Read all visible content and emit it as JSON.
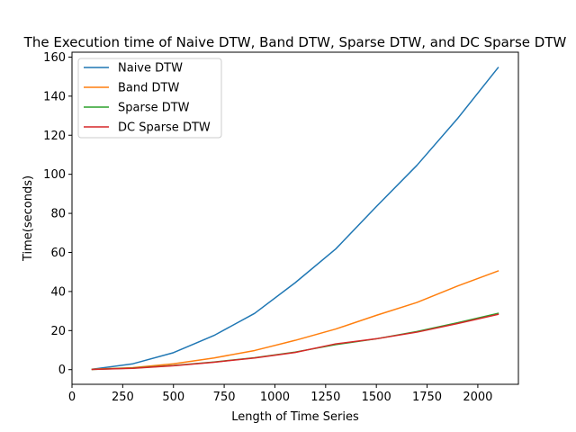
{
  "chart_data": {
    "type": "line",
    "title": "The Execution time of Naive DTW, Band DTW, Sparse DTW, and DC Sparse DTW",
    "xlabel": "Length of Time Series",
    "ylabel": "Time(seconds)",
    "xlim": [
      0,
      2200
    ],
    "ylim": [
      -7.5,
      162.5
    ],
    "xticks": [
      0,
      250,
      500,
      750,
      1000,
      1250,
      1500,
      1750,
      2000
    ],
    "yticks": [
      0,
      20,
      40,
      60,
      80,
      100,
      120,
      140,
      160
    ],
    "legend_position": "top-left",
    "grid": false,
    "x": [
      100,
      300,
      500,
      700,
      900,
      1100,
      1300,
      1500,
      1700,
      1900,
      2100
    ],
    "series": [
      {
        "name": "Naive DTW",
        "color": "#1f77b4",
        "values": [
          0.2,
          3.0,
          8.7,
          17.5,
          28.8,
          44.5,
          61.8,
          83.5,
          104.6,
          128.5,
          154.6
        ]
      },
      {
        "name": "Band DTW",
        "color": "#ff7f0e",
        "values": [
          0.2,
          1.0,
          3.0,
          6.0,
          9.8,
          15.0,
          20.8,
          27.8,
          34.4,
          42.8,
          50.5
        ]
      },
      {
        "name": "Sparse DTW",
        "color": "#2ca02c",
        "values": [
          0.1,
          0.8,
          2.1,
          3.9,
          6.1,
          9.0,
          12.8,
          15.8,
          19.5,
          24.0,
          28.8
        ]
      },
      {
        "name": "DC Sparse DTW",
        "color": "#d62728",
        "values": [
          0.1,
          0.7,
          2.0,
          3.8,
          6.0,
          8.8,
          13.2,
          15.8,
          19.2,
          23.6,
          28.3
        ]
      }
    ]
  }
}
